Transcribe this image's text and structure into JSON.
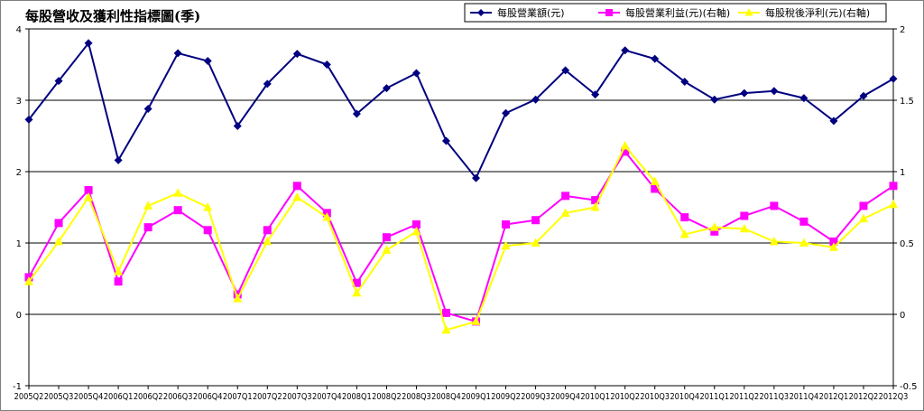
{
  "chart_data": {
    "type": "line",
    "title": "每股營收及獲利性指標圖(季)",
    "categories": [
      "2005Q2",
      "2005Q3",
      "2005Q4",
      "2006Q1",
      "2006Q2",
      "2006Q3",
      "2006Q4",
      "2007Q1",
      "2007Q2",
      "2007Q3",
      "2007Q4",
      "2008Q1",
      "2008Q2",
      "2008Q3",
      "2008Q4",
      "2009Q1",
      "2009Q2",
      "2009Q3",
      "2009Q4",
      "2010Q1",
      "2010Q2",
      "2010Q3",
      "2010Q4",
      "2011Q1",
      "2011Q2",
      "2011Q3",
      "2011Q4",
      "2012Q1",
      "2012Q2",
      "2012Q3"
    ],
    "left_axis": {
      "ylim": [
        -1,
        4
      ],
      "ticks": [
        "-1",
        "0",
        "1",
        "2",
        "3",
        "4"
      ]
    },
    "right_axis": {
      "ylim": [
        -0.5,
        2
      ],
      "ticks": [
        "-0.5",
        "0",
        "0.5",
        "1",
        "1.5",
        "2"
      ]
    },
    "grid": true,
    "legend_position": "top-right",
    "series": [
      {
        "name": "每股營業額(元)",
        "axis": "left",
        "color": "#000080",
        "marker": "diamond",
        "values": [
          2.73,
          3.27,
          3.8,
          2.16,
          2.88,
          3.66,
          3.55,
          2.64,
          3.23,
          3.65,
          3.5,
          2.81,
          3.17,
          3.38,
          2.43,
          1.91,
          2.82,
          3.01,
          3.42,
          3.08,
          3.7,
          3.58,
          3.26,
          3.01,
          3.1,
          3.13,
          3.03,
          2.71,
          3.06,
          3.3
        ]
      },
      {
        "name": "每股營業利益(元)(右軸)",
        "axis": "right",
        "color": "#ff00ff",
        "marker": "square",
        "values": [
          0.26,
          0.64,
          0.87,
          0.23,
          0.61,
          0.73,
          0.59,
          0.14,
          0.59,
          0.9,
          0.71,
          0.22,
          0.54,
          0.63,
          0.01,
          -0.05,
          0.63,
          0.66,
          0.83,
          0.8,
          1.14,
          0.88,
          0.68,
          0.58,
          0.69,
          0.76,
          0.65,
          0.51,
          0.76,
          0.9
        ]
      },
      {
        "name": "每股稅後淨利(元)(右軸)",
        "axis": "right",
        "color": "#ffff00",
        "marker": "triangle",
        "values": [
          0.23,
          0.51,
          0.82,
          0.3,
          0.76,
          0.85,
          0.75,
          0.11,
          0.51,
          0.82,
          0.68,
          0.15,
          0.45,
          0.58,
          -0.11,
          -0.05,
          0.48,
          0.5,
          0.71,
          0.75,
          1.18,
          0.93,
          0.56,
          0.61,
          0.6,
          0.51,
          0.5,
          0.47,
          0.67,
          0.77
        ]
      }
    ]
  }
}
